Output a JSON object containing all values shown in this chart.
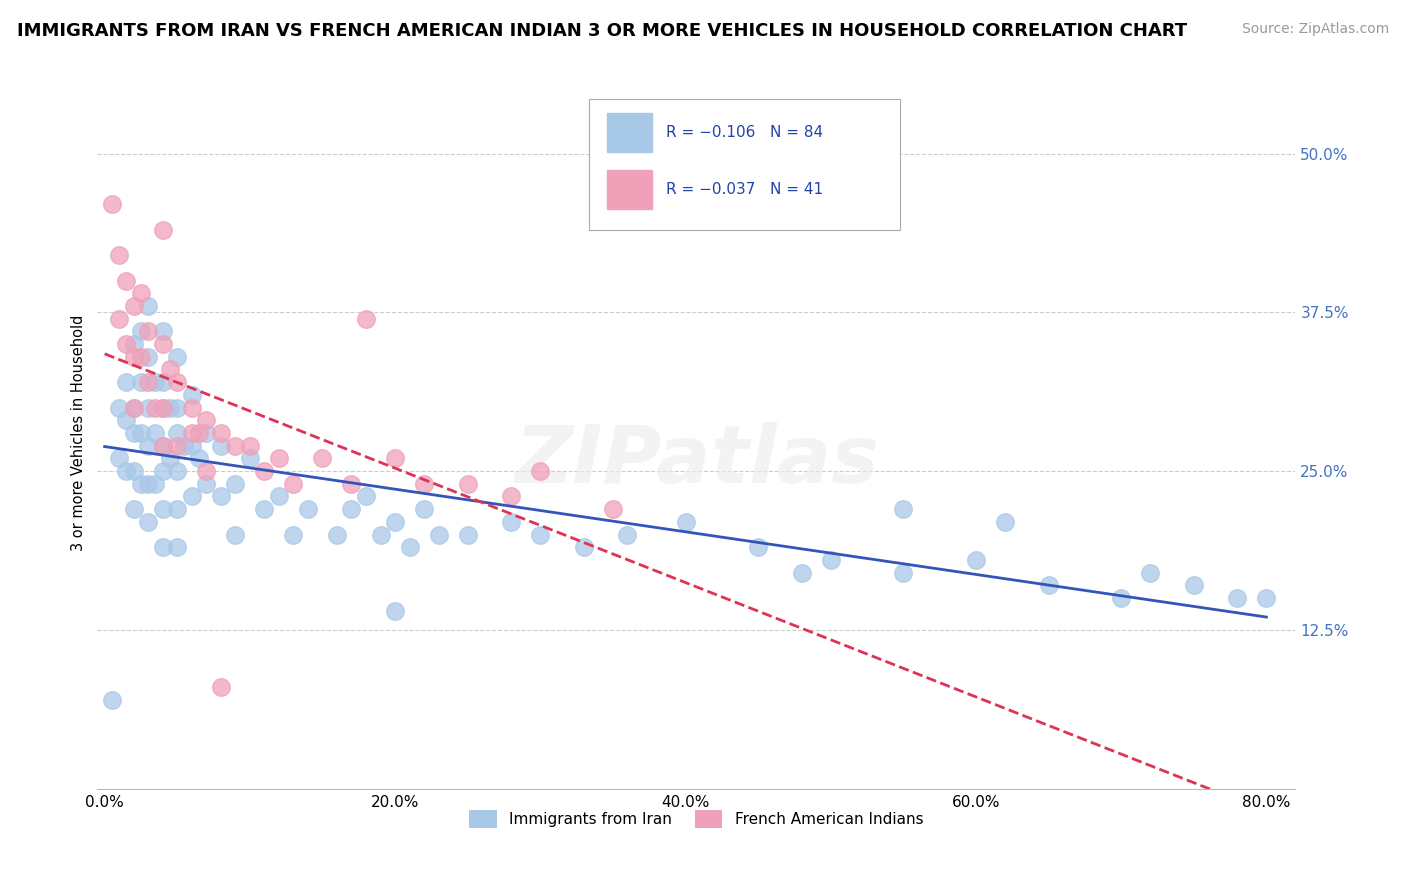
{
  "title": "IMMIGRANTS FROM IRAN VS FRENCH AMERICAN INDIAN 3 OR MORE VEHICLES IN HOUSEHOLD CORRELATION CHART",
  "source": "Source: ZipAtlas.com",
  "ylabel": "3 or more Vehicles in Household",
  "x_ticks": [
    "0.0%",
    "20.0%",
    "40.0%",
    "60.0%",
    "80.0%"
  ],
  "x_tick_vals": [
    0.0,
    0.2,
    0.4,
    0.6,
    0.8
  ],
  "y_ticks": [
    "12.5%",
    "25.0%",
    "37.5%",
    "50.0%"
  ],
  "y_tick_vals": [
    0.125,
    0.25,
    0.375,
    0.5
  ],
  "watermark": "ZIPatlas",
  "series1_color": "#a8c8e8",
  "series2_color": "#f0a0b8",
  "series1_line_color": "#3355bb",
  "series2_line_color": "#dd3355",
  "title_fontsize": 13,
  "source_fontsize": 10,
  "scatter1_x": [
    0.005,
    0.01,
    0.01,
    0.015,
    0.015,
    0.015,
    0.02,
    0.02,
    0.02,
    0.02,
    0.02,
    0.025,
    0.025,
    0.025,
    0.025,
    0.03,
    0.03,
    0.03,
    0.03,
    0.03,
    0.03,
    0.035,
    0.035,
    0.035,
    0.04,
    0.04,
    0.04,
    0.04,
    0.04,
    0.04,
    0.04,
    0.045,
    0.045,
    0.05,
    0.05,
    0.05,
    0.05,
    0.05,
    0.05,
    0.055,
    0.06,
    0.06,
    0.06,
    0.065,
    0.07,
    0.07,
    0.08,
    0.08,
    0.09,
    0.09,
    0.1,
    0.11,
    0.12,
    0.13,
    0.14,
    0.16,
    0.17,
    0.18,
    0.19,
    0.2,
    0.21,
    0.22,
    0.23,
    0.25,
    0.28,
    0.3,
    0.33,
    0.36,
    0.4,
    0.45,
    0.48,
    0.5,
    0.55,
    0.6,
    0.65,
    0.7,
    0.72,
    0.75,
    0.78,
    0.8,
    0.55,
    0.62,
    0.2
  ],
  "scatter1_y": [
    0.07,
    0.3,
    0.26,
    0.32,
    0.29,
    0.25,
    0.35,
    0.3,
    0.28,
    0.25,
    0.22,
    0.36,
    0.32,
    0.28,
    0.24,
    0.38,
    0.34,
    0.3,
    0.27,
    0.24,
    0.21,
    0.32,
    0.28,
    0.24,
    0.36,
    0.32,
    0.3,
    0.27,
    0.25,
    0.22,
    0.19,
    0.3,
    0.26,
    0.34,
    0.3,
    0.28,
    0.25,
    0.22,
    0.19,
    0.27,
    0.31,
    0.27,
    0.23,
    0.26,
    0.28,
    0.24,
    0.27,
    0.23,
    0.24,
    0.2,
    0.26,
    0.22,
    0.23,
    0.2,
    0.22,
    0.2,
    0.22,
    0.23,
    0.2,
    0.21,
    0.19,
    0.22,
    0.2,
    0.2,
    0.21,
    0.2,
    0.19,
    0.2,
    0.21,
    0.19,
    0.17,
    0.18,
    0.17,
    0.18,
    0.16,
    0.15,
    0.17,
    0.16,
    0.15,
    0.15,
    0.22,
    0.21,
    0.14
  ],
  "scatter2_x": [
    0.005,
    0.01,
    0.01,
    0.015,
    0.015,
    0.02,
    0.02,
    0.02,
    0.025,
    0.025,
    0.03,
    0.03,
    0.035,
    0.04,
    0.04,
    0.04,
    0.045,
    0.05,
    0.05,
    0.06,
    0.065,
    0.07,
    0.07,
    0.08,
    0.09,
    0.1,
    0.11,
    0.12,
    0.13,
    0.15,
    0.17,
    0.2,
    0.22,
    0.25,
    0.28,
    0.3,
    0.35,
    0.04,
    0.06,
    0.18,
    0.08
  ],
  "scatter2_y": [
    0.46,
    0.42,
    0.37,
    0.4,
    0.35,
    0.38,
    0.34,
    0.3,
    0.39,
    0.34,
    0.36,
    0.32,
    0.3,
    0.35,
    0.3,
    0.27,
    0.33,
    0.32,
    0.27,
    0.3,
    0.28,
    0.29,
    0.25,
    0.28,
    0.27,
    0.27,
    0.25,
    0.26,
    0.24,
    0.26,
    0.24,
    0.26,
    0.24,
    0.24,
    0.23,
    0.25,
    0.22,
    0.44,
    0.28,
    0.37,
    0.08
  ]
}
